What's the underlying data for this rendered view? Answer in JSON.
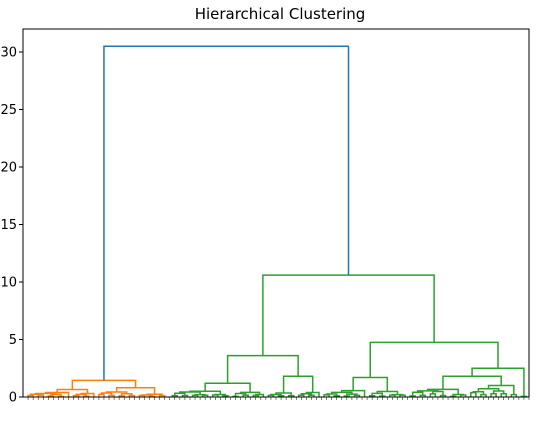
{
  "chart_data": {
    "type": "dendrogram",
    "title": "Hierarchical Clustering",
    "xlabel": "",
    "ylabel": "",
    "ylim": [
      0,
      32
    ],
    "yticks": [
      0,
      5,
      10,
      15,
      20,
      25,
      30
    ],
    "grid": false,
    "colors": {
      "link_above_threshold": "#1f77b4",
      "cluster_1": "#ff7f0e",
      "cluster_2": "#2ca02c"
    },
    "clusters": [
      {
        "color": "cluster_1",
        "leaf_count": 29,
        "merge_height": 1.45
      },
      {
        "color": "cluster_2",
        "leaf_count": 71,
        "merge_height": 10.6
      }
    ],
    "leaf_count": 100,
    "links": [
      {
        "left_height": 1.45,
        "right_height": 10.6,
        "height": 30.5,
        "color": "link_above_threshold"
      },
      {
        "left_height": 3.6,
        "right_height": 4.75,
        "height": 10.6,
        "color": "cluster_2"
      },
      {
        "left_height": 1.2,
        "right_height": 1.8,
        "height": 3.6,
        "color": "cluster_2"
      },
      {
        "left_height": 1.7,
        "right_height": 2.5,
        "height": 4.75,
        "color": "cluster_2"
      },
      {
        "left_height": 0.65,
        "right_height": 0.8,
        "height": 1.45,
        "color": "cluster_1"
      },
      {
        "left_height": 0.55,
        "right_height": 0.6,
        "height": 1.8,
        "color": "cluster_2"
      },
      {
        "left_height": 1.0,
        "right_height": 1.0,
        "height": 1.7,
        "color": "cluster_2"
      },
      {
        "left_height": 1.8,
        "right_height": 1.1,
        "height": 2.5,
        "color": "cluster_2"
      }
    ]
  }
}
